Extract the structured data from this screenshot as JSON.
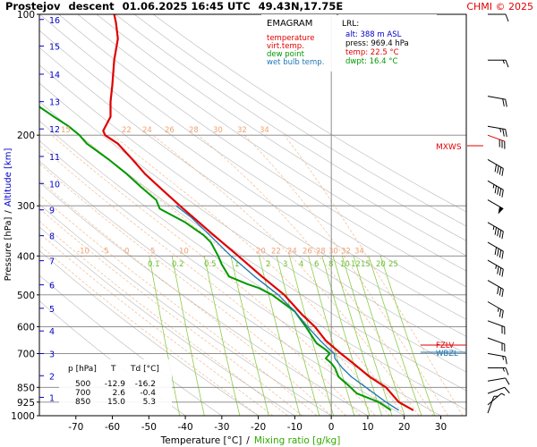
{
  "header": {
    "station": "Prostejov",
    "mode": "descent",
    "datetime": "01.06.2025 16:45 UTC",
    "coords": "49.43N,17.75E",
    "credit": "CHMI © 2025"
  },
  "legend": {
    "title": "EMAGRAM",
    "items": [
      {
        "label": "temperature",
        "color": "#e00000"
      },
      {
        "label": "virt.temp.",
        "color": "#e00000"
      },
      {
        "label": "dew point",
        "color": "#009900"
      },
      {
        "label": "wet bulb temp.",
        "color": "#1f77b4"
      }
    ]
  },
  "lrl": {
    "title": "LRL:",
    "lines": [
      {
        "text": "alt: 388 m ASL",
        "color": "#0000cc"
      },
      {
        "text": "press: 969.4 hPa",
        "color": "#000000"
      },
      {
        "text": "temp: 22.5 °C",
        "color": "#e00000"
      },
      {
        "text": "dwpt: 16.4 °C",
        "color": "#009900"
      }
    ]
  },
  "levels_table": {
    "headers": [
      "p [hPa]",
      "T",
      "Td [°C]"
    ],
    "rows": [
      [
        "500",
        "-12.9",
        "-16.2"
      ],
      [
        "700",
        "2.6",
        "-0.4"
      ],
      [
        "850",
        "15.0",
        "5.3"
      ]
    ]
  },
  "axes": {
    "ylabel_a": "Pressure [hPa]",
    "ylabel_sep": "/",
    "ylabel_b": "Altitude [km]",
    "xlabel_a": "Temperature [°C]",
    "xlabel_sep": "/",
    "xlabel_b": "Mixing ratio [g/kg]"
  },
  "markers": {
    "mxws": "MXWS",
    "fzlv": "FZLV",
    "wbzl": "WBZL"
  },
  "chart_data": {
    "type": "line",
    "title": "Prostejov descent 01.06.2025 16:45 UTC 49.43N,17.75E",
    "x_axis": {
      "label": "Temperature [°C]",
      "range": [
        -80,
        37
      ],
      "ticks": [
        -70,
        -60,
        -50,
        -40,
        -30,
        -20,
        -10,
        0,
        10,
        20,
        30
      ]
    },
    "y_axis": {
      "label": "Pressure [hPa]",
      "scale": "log",
      "range": [
        1000,
        100
      ],
      "ticks": [
        100,
        200,
        300,
        400,
        500,
        600,
        700,
        850,
        925,
        1000
      ]
    },
    "altitude_ticks_km": [
      1,
      2,
      3,
      4,
      5,
      6,
      7,
      8,
      9,
      10,
      11,
      12,
      13,
      14,
      15,
      16
    ],
    "altitude_pressures": [
      900,
      795,
      700,
      615,
      540,
      472,
      411,
      356,
      307,
      264,
      226,
      193,
      165,
      141,
      120,
      103
    ],
    "isotherm_labels_upper": {
      "pressure": 200,
      "values": [
        15,
        22,
        24,
        26,
        28,
        30,
        32,
        34
      ]
    },
    "isotherm_labels_mid": {
      "pressure": 400,
      "values": [
        -10,
        -5,
        0,
        5,
        10,
        20,
        22,
        24,
        26,
        28,
        30,
        32,
        34
      ]
    },
    "mixing_ratio_labels": [
      "0.1",
      "0.2",
      "0.5",
      "1",
      "2",
      "3",
      "4",
      "6",
      "8",
      "10",
      "12",
      "15",
      "20",
      "25"
    ],
    "mixing_ratio_values": [
      0.1,
      0.2,
      0.5,
      1,
      2,
      3,
      4,
      6,
      8,
      10,
      12,
      15,
      20,
      25
    ],
    "series": [
      {
        "name": "temperature",
        "color": "#e00000",
        "points": [
          [
            969.4,
            22.5
          ],
          [
            925,
            18.5
          ],
          [
            850,
            15.0
          ],
          [
            800,
            10.5
          ],
          [
            740,
            6.0
          ],
          [
            700,
            2.6
          ],
          [
            650,
            -1.5
          ],
          [
            600,
            -4.5
          ],
          [
            560,
            -8.0
          ],
          [
            500,
            -12.9
          ],
          [
            450,
            -19.0
          ],
          [
            400,
            -25.5
          ],
          [
            350,
            -33.0
          ],
          [
            300,
            -41.5
          ],
          [
            270,
            -47.0
          ],
          [
            250,
            -51.0
          ],
          [
            230,
            -54.5
          ],
          [
            210,
            -58.5
          ],
          [
            200,
            -62.0
          ],
          [
            195,
            -62.5
          ],
          [
            180,
            -60.5
          ],
          [
            165,
            -60.5
          ],
          [
            150,
            -60.0
          ],
          [
            130,
            -59.5
          ],
          [
            115,
            -58.5
          ],
          [
            105,
            -59.0
          ],
          [
            100,
            -59.5
          ]
        ]
      },
      {
        "name": "dew point",
        "color": "#009900",
        "points": [
          [
            969.4,
            16.4
          ],
          [
            925,
            13.0
          ],
          [
            880,
            7.0
          ],
          [
            850,
            5.3
          ],
          [
            800,
            2.0
          ],
          [
            760,
            1.0
          ],
          [
            740,
            0.0
          ],
          [
            720,
            -1.5
          ],
          [
            700,
            -0.4
          ],
          [
            680,
            -2.0
          ],
          [
            660,
            -4.0
          ],
          [
            600,
            -7.0
          ],
          [
            550,
            -10.0
          ],
          [
            500,
            -16.2
          ],
          [
            480,
            -20.0
          ],
          [
            470,
            -23.0
          ],
          [
            450,
            -28.0
          ],
          [
            420,
            -30.0
          ],
          [
            400,
            -31.0
          ],
          [
            370,
            -33.0
          ],
          [
            355,
            -35.0
          ],
          [
            330,
            -40.0
          ],
          [
            305,
            -47.0
          ],
          [
            290,
            -48.0
          ],
          [
            270,
            -52.0
          ],
          [
            250,
            -56.0
          ],
          [
            230,
            -61.0
          ],
          [
            210,
            -67.0
          ],
          [
            200,
            -69.0
          ],
          [
            190,
            -72.0
          ],
          [
            180,
            -76.0
          ],
          [
            170,
            -80.0
          ]
        ]
      },
      {
        "name": "wet bulb temp.",
        "color": "#1f77b4",
        "points": [
          [
            969.4,
            18.5
          ],
          [
            925,
            15.0
          ],
          [
            850,
            9.5
          ],
          [
            800,
            5.5
          ],
          [
            760,
            3.0
          ],
          [
            740,
            2.0
          ],
          [
            720,
            1.0
          ],
          [
            700,
            0.8
          ],
          [
            680,
            -0.8
          ],
          [
            650,
            -3.0
          ],
          [
            600,
            -6.5
          ],
          [
            550,
            -10.0
          ],
          [
            500,
            -14.5
          ],
          [
            450,
            -21.0
          ],
          [
            400,
            -27.5
          ],
          [
            350,
            -34.0
          ],
          [
            320,
            -38.5
          ],
          [
            300,
            -42.5
          ]
        ]
      }
    ]
  },
  "wind_barbs_pressures": [
    100,
    130,
    160,
    190,
    200,
    230,
    260,
    290,
    330,
    370,
    410,
    460,
    520,
    580,
    640,
    700,
    760,
    820,
    880,
    940,
    985
  ],
  "wind_barbs": [
    {
      "dir": 270,
      "speed": 10
    },
    {
      "dir": 270,
      "speed": 15
    },
    {
      "dir": 280,
      "speed": 20
    },
    {
      "dir": 280,
      "speed": 25
    },
    {
      "dir": 290,
      "speed": 30
    },
    {
      "dir": 300,
      "speed": 40
    },
    {
      "dir": 300,
      "speed": 45
    },
    {
      "dir": 300,
      "speed": 50
    },
    {
      "dir": 300,
      "speed": 45
    },
    {
      "dir": 300,
      "speed": 40
    },
    {
      "dir": 300,
      "speed": 35
    },
    {
      "dir": 300,
      "speed": 30
    },
    {
      "dir": 300,
      "speed": 25
    },
    {
      "dir": 290,
      "speed": 20
    },
    {
      "dir": 290,
      "speed": 20
    },
    {
      "dir": 280,
      "speed": 15
    },
    {
      "dir": 270,
      "speed": 15
    },
    {
      "dir": 260,
      "speed": 10
    },
    {
      "dir": 250,
      "speed": 10
    },
    {
      "dir": 230,
      "speed": 5
    },
    {
      "dir": 200,
      "speed": 5
    }
  ]
}
